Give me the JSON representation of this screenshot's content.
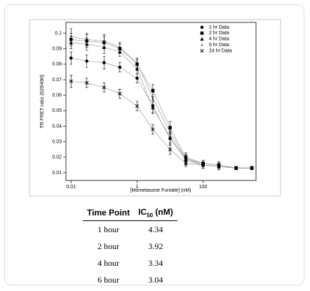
{
  "chart_data": {
    "type": "line",
    "xlabel": "[Mometasone Furoate] (nM)",
    "ylabel": "TR FRET ratio (520/490)",
    "xscale": "log",
    "x": [
      0.01,
      0.03,
      0.1,
      0.3,
      1,
      3,
      10,
      30,
      100,
      300,
      1000,
      3000
    ],
    "xlim": [
      0.007,
      4000
    ],
    "xticks": [
      0.01,
      1,
      100
    ],
    "ylim": [
      0.005,
      0.107
    ],
    "yticks": [
      0.01,
      0.02,
      0.03,
      0.04,
      0.05,
      0.06,
      0.07,
      0.08,
      0.09,
      0.1
    ],
    "legend": "upper right",
    "series": [
      {
        "name": "1 hr Data",
        "marker": "circle",
        "color": "#000000",
        "values": [
          0.084,
          0.082,
          0.081,
          0.078,
          0.071,
          0.053,
          0.032,
          0.018,
          0.015,
          0.014,
          0.013,
          0.013
        ],
        "errors": [
          0.004,
          0.004,
          0.004,
          0.003,
          0.003,
          0.004,
          0.004,
          0.003,
          0.002,
          0.002,
          0.001,
          0.001
        ]
      },
      {
        "name": "2 hr Data",
        "marker": "square",
        "color": "#000000",
        "values": [
          0.096,
          0.095,
          0.094,
          0.09,
          0.08,
          0.063,
          0.039,
          0.02,
          0.016,
          0.015,
          0.013,
          0.013
        ],
        "errors": [
          0.004,
          0.004,
          0.004,
          0.003,
          0.003,
          0.004,
          0.004,
          0.003,
          0.002,
          0.002,
          0.001,
          0.001
        ]
      },
      {
        "name": "4 hr Data",
        "marker": "triangle",
        "color": "#000000",
        "values": [
          0.094,
          0.093,
          0.091,
          0.088,
          0.077,
          0.052,
          0.033,
          0.019,
          0.016,
          0.015,
          0.013,
          0.013
        ],
        "errors": [
          0.004,
          0.004,
          0.004,
          0.003,
          0.003,
          0.004,
          0.004,
          0.003,
          0.002,
          0.002,
          0.001,
          0.001
        ]
      },
      {
        "name": "6 hr Data",
        "marker": "dot",
        "color": "#000000",
        "values": [
          0.098,
          0.096,
          0.095,
          0.091,
          0.081,
          0.058,
          0.036,
          0.019,
          0.015,
          0.014,
          0.013,
          0.013
        ],
        "errors": [
          0.005,
          0.004,
          0.004,
          0.003,
          0.003,
          0.004,
          0.004,
          0.003,
          0.002,
          0.002,
          0.001,
          0.001
        ]
      },
      {
        "name": "24 hr Data",
        "marker": "cross",
        "color": "#000000",
        "values": [
          0.069,
          0.068,
          0.065,
          0.061,
          0.053,
          0.038,
          0.025,
          0.016,
          0.015,
          0.014,
          0.013,
          0.013
        ],
        "errors": [
          0.004,
          0.003,
          0.003,
          0.003,
          0.003,
          0.003,
          0.003,
          0.002,
          0.002,
          0.001,
          0.001,
          0.001
        ]
      }
    ]
  },
  "table": {
    "header": [
      "Time Point",
      [
        "IC",
        "50",
        " (nM)"
      ]
    ],
    "rows": [
      [
        "1 hour",
        "4.34"
      ],
      [
        "2 hour",
        "3.92"
      ],
      [
        "4 hour",
        "3.34"
      ],
      [
        "6 hour",
        "3.04"
      ]
    ]
  }
}
